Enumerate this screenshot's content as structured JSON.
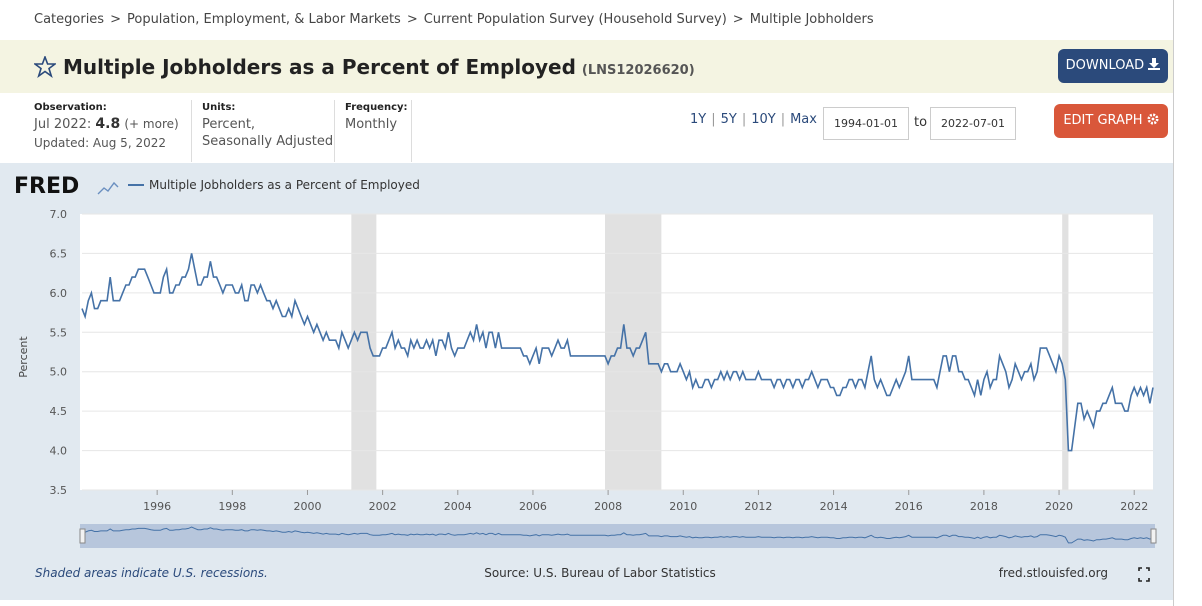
{
  "breadcrumb": {
    "items": [
      "Categories",
      "Population, Employment, & Labor Markets",
      "Current Population Survey (Household Survey)",
      "Multiple Jobholders"
    ],
    "separator": ">"
  },
  "header": {
    "title": "Multiple Jobholders as a Percent of Employed",
    "series_id": "(LNS12026620)",
    "download": "DOWNLOAD"
  },
  "info": {
    "observation_label": "Observation:",
    "observation_date": "Jul 2022:",
    "observation_value": "4.8",
    "more": "(+ more)",
    "updated": "Updated: Aug 5, 2022",
    "units_label": "Units:",
    "units": [
      "Percent,",
      "Seasonally Adjusted"
    ],
    "frequency_label": "Frequency:",
    "frequency": "Monthly"
  },
  "controls": {
    "ranges": [
      "1Y",
      "5Y",
      "10Y",
      "Max"
    ],
    "range_separator": "|",
    "start": "1994-01-01",
    "to": "to",
    "end": "2022-07-01",
    "edit": "EDIT GRAPH"
  },
  "logo": "FRED",
  "chart_data": {
    "type": "line",
    "ylabel": "Percent",
    "xlim": [
      1994,
      2022.5
    ],
    "xticks": [
      1996,
      1998,
      2000,
      2002,
      2004,
      2006,
      2008,
      2010,
      2012,
      2014,
      2016,
      2018,
      2020,
      2022
    ],
    "ylim": [
      3.5,
      7.0
    ],
    "yticks": [
      3.5,
      {
        "value": 4.0,
        "label": "4.0"
      },
      4.5,
      {
        "value": 5.0,
        "label": "5.0"
      },
      5.5,
      {
        "value": 6.0,
        "label": "6.0"
      },
      6.5,
      {
        "value": 7.0,
        "label": "7.0"
      }
    ],
    "grid": true,
    "recessions": [
      [
        2001.167,
        2001.833
      ],
      [
        2007.917,
        2009.417
      ],
      [
        2020.083,
        2020.25
      ]
    ],
    "x": [
      1994,
      1994.083,
      1994.167,
      1994.25,
      1994.333,
      1994.417,
      1994.5,
      1994.583,
      1994.667,
      1994.75,
      1994.833,
      1994.917,
      1995,
      1995.083,
      1995.167,
      1995.25,
      1995.333,
      1995.417,
      1995.5,
      1995.583,
      1995.667,
      1995.75,
      1995.833,
      1995.917,
      1996,
      1996.083,
      1996.167,
      1996.25,
      1996.333,
      1996.417,
      1996.5,
      1996.583,
      1996.667,
      1996.75,
      1996.833,
      1996.917,
      1997,
      1997.083,
      1997.167,
      1997.25,
      1997.333,
      1997.417,
      1997.5,
      1997.583,
      1997.667,
      1997.75,
      1997.833,
      1997.917,
      1998,
      1998.083,
      1998.167,
      1998.25,
      1998.333,
      1998.417,
      1998.5,
      1998.583,
      1998.667,
      1998.75,
      1998.833,
      1998.917,
      1999,
      1999.083,
      1999.167,
      1999.25,
      1999.333,
      1999.417,
      1999.5,
      1999.583,
      1999.667,
      1999.75,
      1999.833,
      1999.917,
      2000,
      2000.083,
      2000.167,
      2000.25,
      2000.333,
      2000.417,
      2000.5,
      2000.583,
      2000.667,
      2000.75,
      2000.833,
      2000.917,
      2001,
      2001.083,
      2001.167,
      2001.25,
      2001.333,
      2001.417,
      2001.5,
      2001.583,
      2001.667,
      2001.75,
      2001.833,
      2001.917,
      2002,
      2002.083,
      2002.167,
      2002.25,
      2002.333,
      2002.417,
      2002.5,
      2002.583,
      2002.667,
      2002.75,
      2002.833,
      2002.917,
      2003,
      2003.083,
      2003.167,
      2003.25,
      2003.333,
      2003.417,
      2003.5,
      2003.583,
      2003.667,
      2003.75,
      2003.833,
      2003.917,
      2004,
      2004.083,
      2004.167,
      2004.25,
      2004.333,
      2004.417,
      2004.5,
      2004.583,
      2004.667,
      2004.75,
      2004.833,
      2004.917,
      2005,
      2005.083,
      2005.167,
      2005.25,
      2005.333,
      2005.417,
      2005.5,
      2005.583,
      2005.667,
      2005.75,
      2005.833,
      2005.917,
      2006,
      2006.083,
      2006.167,
      2006.25,
      2006.333,
      2006.417,
      2006.5,
      2006.583,
      2006.667,
      2006.75,
      2006.833,
      2006.917,
      2007,
      2007.083,
      2007.167,
      2007.25,
      2007.333,
      2007.417,
      2007.5,
      2007.583,
      2007.667,
      2007.75,
      2007.833,
      2007.917,
      2008,
      2008.083,
      2008.167,
      2008.25,
      2008.333,
      2008.417,
      2008.5,
      2008.583,
      2008.667,
      2008.75,
      2008.833,
      2008.917,
      2009,
      2009.083,
      2009.167,
      2009.25,
      2009.333,
      2009.417,
      2009.5,
      2009.583,
      2009.667,
      2009.75,
      2009.833,
      2009.917,
      2010,
      2010.083,
      2010.167,
      2010.25,
      2010.333,
      2010.417,
      2010.5,
      2010.583,
      2010.667,
      2010.75,
      2010.833,
      2010.917,
      2011,
      2011.083,
      2011.167,
      2011.25,
      2011.333,
      2011.417,
      2011.5,
      2011.583,
      2011.667,
      2011.75,
      2011.833,
      2011.917,
      2012,
      2012.083,
      2012.167,
      2012.25,
      2012.333,
      2012.417,
      2012.5,
      2012.583,
      2012.667,
      2012.75,
      2012.833,
      2012.917,
      2013,
      2013.083,
      2013.167,
      2013.25,
      2013.333,
      2013.417,
      2013.5,
      2013.583,
      2013.667,
      2013.75,
      2013.833,
      2013.917,
      2014,
      2014.083,
      2014.167,
      2014.25,
      2014.333,
      2014.417,
      2014.5,
      2014.583,
      2014.667,
      2014.75,
      2014.833,
      2014.917,
      2015,
      2015.083,
      2015.167,
      2015.25,
      2015.333,
      2015.417,
      2015.5,
      2015.583,
      2015.667,
      2015.75,
      2015.833,
      2015.917,
      2016,
      2016.083,
      2016.167,
      2016.25,
      2016.333,
      2016.417,
      2016.5,
      2016.583,
      2016.667,
      2016.75,
      2016.833,
      2016.917,
      2017,
      2017.083,
      2017.167,
      2017.25,
      2017.333,
      2017.417,
      2017.5,
      2017.583,
      2017.667,
      2017.75,
      2017.833,
      2017.917,
      2018,
      2018.083,
      2018.167,
      2018.25,
      2018.333,
      2018.417,
      2018.5,
      2018.583,
      2018.667,
      2018.75,
      2018.833,
      2018.917,
      2019,
      2019.083,
      2019.167,
      2019.25,
      2019.333,
      2019.417,
      2019.5,
      2019.583,
      2019.667,
      2019.75,
      2019.833,
      2019.917,
      2020,
      2020.083,
      2020.167,
      2020.25,
      2020.333,
      2020.417,
      2020.5,
      2020.583,
      2020.667,
      2020.75,
      2020.833,
      2020.917,
      2021,
      2021.083,
      2021.167,
      2021.25,
      2021.333,
      2021.417,
      2021.5,
      2021.583,
      2021.667,
      2021.75,
      2021.833,
      2021.917,
      2022,
      2022.083,
      2022.167,
      2022.25,
      2022.333,
      2022.417,
      2022.5
    ],
    "series": [
      {
        "name": "Multiple Jobholders as a Percent of Employed",
        "color": "#4572a7",
        "values": [
          5.8,
          5.7,
          5.9,
          6.0,
          5.8,
          5.8,
          5.9,
          5.9,
          5.9,
          6.2,
          5.9,
          5.9,
          5.9,
          6.0,
          6.1,
          6.1,
          6.2,
          6.2,
          6.3,
          6.3,
          6.3,
          6.2,
          6.1,
          6.0,
          6.0,
          6.0,
          6.2,
          6.3,
          6.0,
          6.0,
          6.1,
          6.1,
          6.2,
          6.2,
          6.3,
          6.5,
          6.3,
          6.1,
          6.1,
          6.2,
          6.2,
          6.4,
          6.2,
          6.2,
          6.1,
          6.0,
          6.1,
          6.1,
          6.1,
          6.0,
          6.0,
          6.1,
          5.9,
          5.9,
          6.1,
          6.1,
          6.0,
          6.1,
          6.0,
          5.9,
          5.9,
          5.8,
          5.9,
          5.8,
          5.7,
          5.7,
          5.8,
          5.7,
          5.9,
          5.8,
          5.7,
          5.6,
          5.7,
          5.6,
          5.5,
          5.6,
          5.5,
          5.4,
          5.5,
          5.4,
          5.4,
          5.4,
          5.3,
          5.5,
          5.4,
          5.3,
          5.4,
          5.5,
          5.4,
          5.5,
          5.5,
          5.5,
          5.3,
          5.2,
          5.2,
          5.2,
          5.3,
          5.3,
          5.4,
          5.5,
          5.3,
          5.4,
          5.3,
          5.3,
          5.2,
          5.4,
          5.3,
          5.4,
          5.3,
          5.3,
          5.4,
          5.3,
          5.4,
          5.2,
          5.4,
          5.4,
          5.3,
          5.5,
          5.3,
          5.2,
          5.3,
          5.3,
          5.3,
          5.4,
          5.5,
          5.4,
          5.6,
          5.4,
          5.5,
          5.3,
          5.5,
          5.5,
          5.3,
          5.5,
          5.3,
          5.3,
          5.3,
          5.3,
          5.3,
          5.3,
          5.3,
          5.2,
          5.2,
          5.1,
          5.2,
          5.3,
          5.1,
          5.3,
          5.3,
          5.3,
          5.2,
          5.3,
          5.4,
          5.3,
          5.3,
          5.4,
          5.2,
          5.2,
          5.2,
          5.2,
          5.2,
          5.2,
          5.2,
          5.2,
          5.2,
          5.2,
          5.2,
          5.2,
          5.1,
          5.2,
          5.2,
          5.3,
          5.3,
          5.6,
          5.3,
          5.3,
          5.2,
          5.3,
          5.3,
          5.4,
          5.5,
          5.1,
          5.1,
          5.1,
          5.1,
          5.0,
          5.1,
          5.1,
          5.0,
          5.0,
          5.0,
          5.1,
          5.0,
          4.9,
          5.0,
          4.8,
          4.9,
          4.8,
          4.8,
          4.9,
          4.9,
          4.8,
          4.9,
          4.9,
          5.0,
          4.9,
          5.0,
          4.9,
          5.0,
          5.0,
          4.9,
          5.0,
          4.9,
          4.9,
          4.9,
          4.9,
          5.0,
          4.9,
          4.9,
          4.9,
          4.9,
          4.8,
          4.9,
          4.9,
          4.8,
          4.9,
          4.9,
          4.8,
          4.9,
          4.9,
          4.8,
          4.9,
          4.9,
          5.0,
          4.9,
          4.8,
          4.9,
          4.9,
          4.9,
          4.8,
          4.8,
          4.7,
          4.7,
          4.8,
          4.8,
          4.9,
          4.9,
          4.8,
          4.9,
          4.9,
          4.8,
          5.0,
          5.2,
          4.9,
          4.8,
          4.9,
          4.8,
          4.7,
          4.7,
          4.8,
          4.9,
          4.8,
          4.9,
          5.0,
          5.2,
          4.9,
          4.9,
          4.9,
          4.9,
          4.9,
          4.9,
          4.9,
          4.9,
          4.8,
          5.0,
          5.2,
          5.2,
          5.0,
          5.2,
          5.2,
          5.0,
          5.0,
          4.9,
          4.9,
          4.8,
          4.7,
          4.9,
          4.7,
          4.9,
          5.0,
          4.8,
          4.9,
          4.9,
          5.2,
          5.1,
          5.0,
          4.8,
          4.9,
          5.1,
          5.0,
          4.9,
          5.0,
          5.0,
          5.1,
          4.9,
          5.0,
          5.3,
          5.3,
          5.3,
          5.2,
          5.1,
          5.0,
          5.2,
          5.1,
          4.9,
          4.0,
          4.0,
          4.3,
          4.6,
          4.6,
          4.4,
          4.5,
          4.4,
          4.3,
          4.5,
          4.5,
          4.6,
          4.6,
          4.7,
          4.8,
          4.6,
          4.6,
          4.6,
          4.5,
          4.5,
          4.7,
          4.8,
          4.7,
          4.8,
          4.7,
          4.8,
          4.6,
          4.8
        ]
      }
    ]
  },
  "footer": {
    "note": "Shaded areas indicate U.S. recessions.",
    "source": "Source: U.S. Bureau of Labor Statistics",
    "site": "fred.stlouisfed.org"
  }
}
